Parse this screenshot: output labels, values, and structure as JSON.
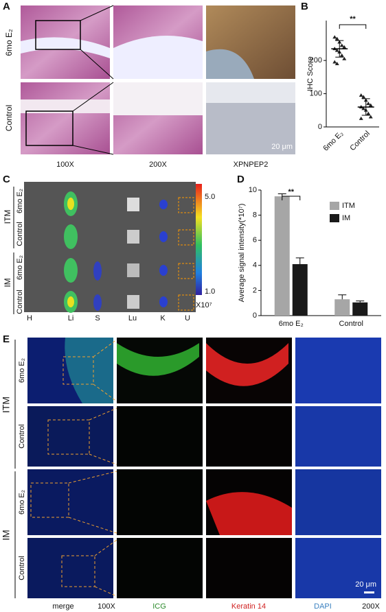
{
  "panel_a": {
    "letter": "A",
    "rows": [
      "6mo E₂",
      "Control"
    ],
    "columns": [
      "100X",
      "200X",
      "XPNPEP2"
    ],
    "scale": "20 μm"
  },
  "panel_b": {
    "letter": "B"
  },
  "panel_c": {
    "letter": "C",
    "groups": [
      "ITM",
      "IM"
    ],
    "rows": [
      "6mo E₂",
      "Control",
      "6mo E₂",
      "Control"
    ],
    "columns": [
      "H",
      "Li",
      "S",
      "Lu",
      "K",
      "U"
    ],
    "colorbar": [
      "5.0",
      "1.0"
    ],
    "colorbar_unit": "X10⁷"
  },
  "panel_d": {
    "letter": "D"
  },
  "panel_e": {
    "letter": "E",
    "groups": [
      "ITM",
      "IM"
    ],
    "rows": [
      "6mo E₂",
      "Control",
      "6mo E₂",
      "Control"
    ],
    "columns": [
      "merge",
      "100X",
      "ICG",
      "Keratin 14",
      "DAPI",
      "200X"
    ],
    "scale": "20 μm"
  },
  "chart_data": [
    {
      "type": "dot",
      "ylabel": "IHC Score",
      "categories": [
        "6mo E₂",
        "Control"
      ],
      "points": [
        [
          270,
          265,
          255,
          245,
          240,
          235,
          230,
          225,
          215,
          205,
          195,
          190
        ],
        [
          95,
          90,
          80,
          70,
          65,
          60,
          55,
          50,
          40,
          30,
          25
        ]
      ],
      "means": [
        235,
        60
      ],
      "errors": [
        25,
        25
      ],
      "significance": "**",
      "ylim": [
        0,
        320
      ],
      "yticks": [
        0,
        100,
        200
      ]
    },
    {
      "type": "bar",
      "ylabel": "Average signal intensity(*10⁷)",
      "categories": [
        "6mo E₂",
        "Control"
      ],
      "series": [
        {
          "name": "ITM",
          "color": "#a6a6a6",
          "values": [
            9.5,
            1.3
          ],
          "errors": [
            0.2,
            0.35
          ]
        },
        {
          "name": "IM",
          "color": "#1a1a1a",
          "values": [
            4.1,
            1.05
          ],
          "errors": [
            0.5,
            0.12
          ]
        }
      ],
      "significance": "**",
      "ylim": [
        0,
        10
      ],
      "yticks": [
        0,
        2,
        4,
        6,
        8,
        10
      ]
    }
  ]
}
